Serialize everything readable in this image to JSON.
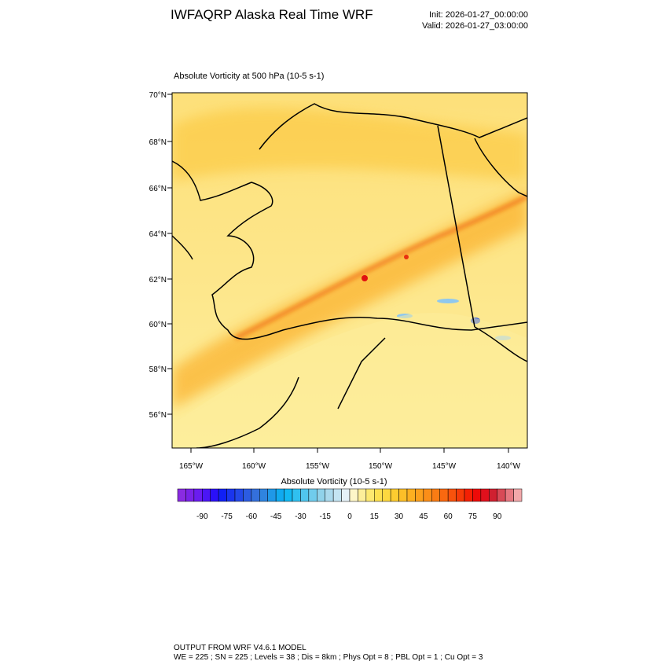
{
  "header": {
    "title": "IWFAQRP Alaska Real Time WRF",
    "init": "Init: 2026-01-27_00:00:00",
    "valid": "Valid: 2026-01-27_03:00:00"
  },
  "plot": {
    "subtitle": "Absolute Vorticity at 500 hPa   (10-5 s-1)",
    "lat_labels": [
      "70°N",
      "68°N",
      "66°N",
      "64°N",
      "62°N",
      "60°N",
      "58°N",
      "56°N"
    ],
    "lon_labels": [
      "165°W",
      "160°W",
      "155°W",
      "150°W",
      "145°W",
      "140°W"
    ]
  },
  "colorbar": {
    "title": "Absolute Vorticity  (10-5 s-1)",
    "labels": [
      "-90",
      "-75",
      "-60",
      "-45",
      "-30",
      "-15",
      "0",
      "15",
      "30",
      "45",
      "60",
      "75",
      "90"
    ],
    "colors": [
      "#8a2be2",
      "#7a22e8",
      "#6a1cf0",
      "#4b16f5",
      "#2a10f8",
      "#1020f5",
      "#1a35ee",
      "#2348e8",
      "#2c5ce2",
      "#3470dc",
      "#2f84e0",
      "#1f98e8",
      "#10aaf0",
      "#12b8f2",
      "#30c0f0",
      "#50c6ee",
      "#70ccec",
      "#90d2ea",
      "#aad9ec",
      "#c4e4f2",
      "#e6f2f8",
      "#fdf6c8",
      "#fdee9a",
      "#fde870",
      "#fde050",
      "#fdd840",
      "#fdcc30",
      "#fdbf28",
      "#fdb020",
      "#fca01c",
      "#fb8e18",
      "#fa7c14",
      "#f96810",
      "#f8520c",
      "#f63a08",
      "#f42004",
      "#ee0a08",
      "#e0101c",
      "#d02030",
      "#d84a56",
      "#e67880",
      "#f2a8aa"
    ]
  },
  "footer": {
    "line1": "OUTPUT FROM WRF V4.6.1 MODEL",
    "line2": "WE = 225 ; SN = 225 ; Levels = 38 ; Dis = 8km ; Phys Opt = 8 ; PBL Opt = 1 ; Cu Opt = 3"
  }
}
